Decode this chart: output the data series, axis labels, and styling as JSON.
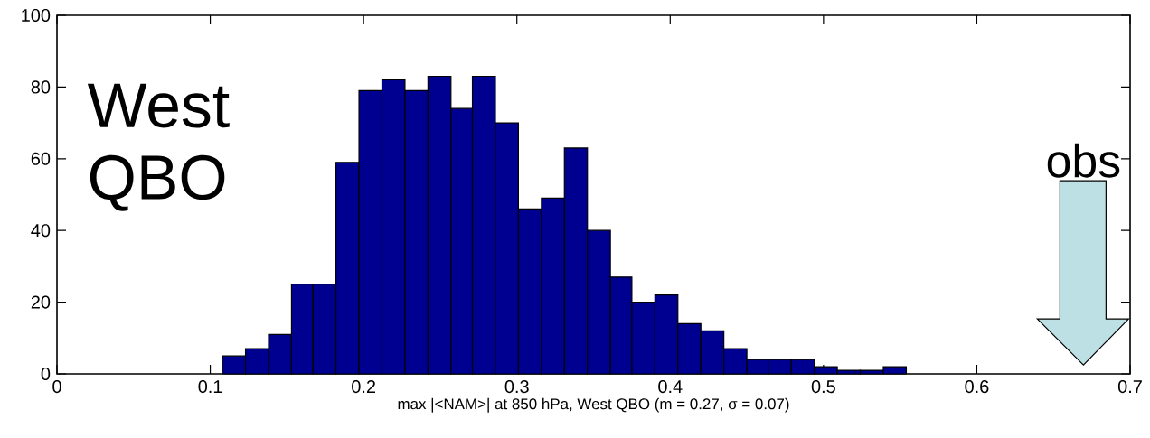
{
  "chart_data": {
    "type": "histogram",
    "xlabel": "max |<NAM>| at 850 hPa, West QBO (m = 0.27, σ = 0.07)",
    "bins": [
      0.108,
      0.123,
      0.138,
      0.153,
      0.167,
      0.182,
      0.197,
      0.212,
      0.227,
      0.242,
      0.257,
      0.271,
      0.286,
      0.301,
      0.316,
      0.331,
      0.346,
      0.361,
      0.375,
      0.39,
      0.405,
      0.42,
      0.435,
      0.45,
      0.464,
      0.479,
      0.494,
      0.509,
      0.524,
      0.539,
      0.554
    ],
    "values": [
      5,
      7,
      11,
      25,
      25,
      59,
      79,
      82,
      79,
      83,
      74,
      83,
      70,
      46,
      49,
      63,
      40,
      27,
      20,
      22,
      14,
      12,
      7,
      4,
      4,
      4,
      2,
      1,
      1,
      2
    ],
    "color": "#000090",
    "xlim": [
      0,
      0.7
    ],
    "ylim": [
      0,
      100
    ],
    "xticks": [
      0,
      0.1,
      0.2,
      0.3,
      0.4,
      0.5,
      0.6,
      0.7
    ],
    "yticks": [
      0,
      20,
      40,
      60,
      80,
      100
    ],
    "annotations": [
      "West QBO",
      "obs"
    ]
  }
}
